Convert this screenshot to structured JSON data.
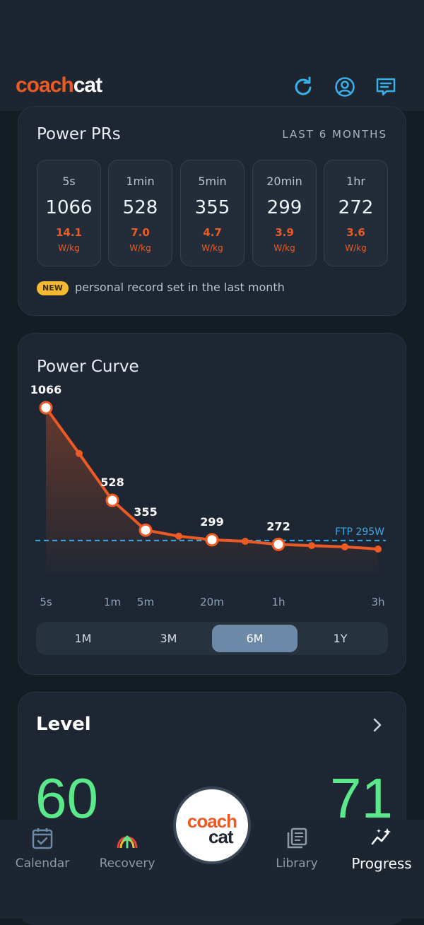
{
  "app": {
    "logo_coach": "coach",
    "logo_cat": "cat"
  },
  "header": {
    "icons": [
      "refresh-icon",
      "profile-icon",
      "chat-icon"
    ]
  },
  "power_prs": {
    "title": "Power PRs",
    "range": "LAST 6 MONTHS",
    "items": [
      {
        "duration": "5s",
        "watts": "1066",
        "wkg": "14.1",
        "unit": "W/kg"
      },
      {
        "duration": "1min",
        "watts": "528",
        "wkg": "7.0",
        "unit": "W/kg"
      },
      {
        "duration": "5min",
        "watts": "355",
        "wkg": "4.7",
        "unit": "W/kg"
      },
      {
        "duration": "20min",
        "watts": "299",
        "wkg": "3.9",
        "unit": "W/kg"
      },
      {
        "duration": "1hr",
        "watts": "272",
        "wkg": "3.6",
        "unit": "W/kg"
      }
    ],
    "badge": "NEW",
    "badge_text": "personal record set in the last month"
  },
  "power_curve": {
    "title": "Power Curve",
    "ranges": [
      "1M",
      "3M",
      "6M",
      "1Y"
    ],
    "selected_range": "6M"
  },
  "chart_data": {
    "type": "line",
    "x_ticks": [
      "5s",
      "1m",
      "5m",
      "20m",
      "1h",
      "3h"
    ],
    "points": [
      {
        "x": "5s",
        "y": 1066,
        "label": "1066"
      },
      {
        "x": "30s",
        "y": 800
      },
      {
        "x": "1m",
        "y": 528,
        "label": "528"
      },
      {
        "x": "5m",
        "y": 355,
        "label": "355"
      },
      {
        "x": "10m",
        "y": 320
      },
      {
        "x": "20m",
        "y": 299,
        "label": "299"
      },
      {
        "x": "40m",
        "y": 290
      },
      {
        "x": "1h",
        "y": 272,
        "label": "272"
      },
      {
        "x": "90m",
        "y": 265
      },
      {
        "x": "2h",
        "y": 258
      },
      {
        "x": "3h",
        "y": 245
      }
    ],
    "ftp": {
      "value": 295,
      "label": "FTP 295W"
    },
    "colors": {
      "line": "#ee5a24",
      "ftp": "#3fa8e0"
    }
  },
  "level": {
    "title": "Level",
    "left_value": "60",
    "right_value": "71"
  },
  "nav": {
    "items": [
      {
        "label": "Calendar",
        "icon": "calendar-icon"
      },
      {
        "label": "Recovery",
        "icon": "recovery-icon"
      },
      {
        "label": "Library",
        "icon": "library-icon"
      },
      {
        "label": "Progress",
        "icon": "progress-icon"
      }
    ],
    "center": {
      "line1": "coach",
      "line2": "cat"
    }
  }
}
